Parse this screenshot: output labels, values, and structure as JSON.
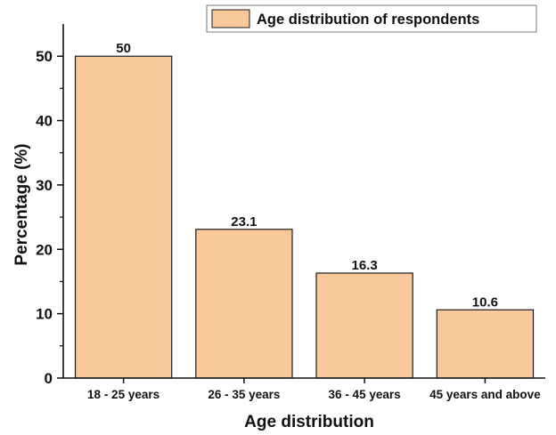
{
  "chart_data": {
    "type": "bar",
    "categories": [
      "18 - 25 years",
      "26 - 35 years",
      "36 - 45 years",
      "45 years and above"
    ],
    "series": [
      {
        "name": "Age distribution of respondents",
        "values": [
          50,
          23.1,
          16.3,
          10.6
        ]
      }
    ],
    "data_labels": [
      "50",
      "23.1",
      "16.3",
      "10.6"
    ],
    "title": "",
    "xlabel": "Age distribution",
    "ylabel": "Percentage (%)",
    "ylim": [
      0,
      55
    ],
    "yticks": [
      0,
      10,
      20,
      30,
      40,
      50
    ],
    "grid": false,
    "legend": "top-right",
    "colors": {
      "bar_fill": "#f9c89b",
      "bar_stroke": "#1a1a1a",
      "axis": "#111111"
    }
  }
}
